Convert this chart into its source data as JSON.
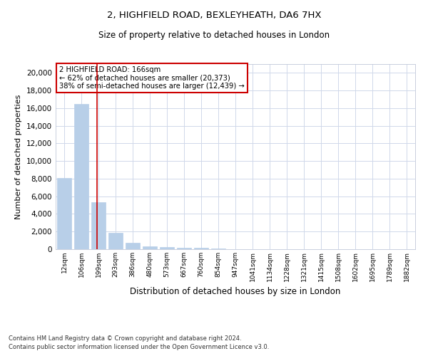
{
  "title1": "2, HIGHFIELD ROAD, BEXLEYHEATH, DA6 7HX",
  "title2": "Size of property relative to detached houses in London",
  "xlabel": "Distribution of detached houses by size in London",
  "ylabel": "Number of detached properties",
  "categories": [
    "12sqm",
    "106sqm",
    "199sqm",
    "293sqm",
    "386sqm",
    "480sqm",
    "573sqm",
    "667sqm",
    "760sqm",
    "854sqm",
    "947sqm",
    "1041sqm",
    "1134sqm",
    "1228sqm",
    "1321sqm",
    "1415sqm",
    "1508sqm",
    "1602sqm",
    "1695sqm",
    "1789sqm",
    "1882sqm"
  ],
  "values": [
    8100,
    16500,
    5300,
    1850,
    700,
    350,
    280,
    200,
    150,
    50,
    0,
    0,
    0,
    0,
    0,
    0,
    0,
    0,
    0,
    0,
    0
  ],
  "bar_color": "#b8cfe8",
  "bar_edge_color": "#b8cfe8",
  "grid_color": "#d0d8ea",
  "annotation_box_text": "2 HIGHFIELD ROAD: 166sqm\n← 62% of detached houses are smaller (20,373)\n38% of semi-detached houses are larger (12,439) →",
  "annotation_box_color": "#ffffff",
  "annotation_box_edge_color": "#cc0000",
  "red_line_x": 1.93,
  "ylim": [
    0,
    21000
  ],
  "yticks": [
    0,
    2000,
    4000,
    6000,
    8000,
    10000,
    12000,
    14000,
    16000,
    18000,
    20000
  ],
  "footer1": "Contains HM Land Registry data © Crown copyright and database right 2024.",
  "footer2": "Contains public sector information licensed under the Open Government Licence v3.0.",
  "figsize": [
    6.0,
    5.0
  ],
  "dpi": 100
}
